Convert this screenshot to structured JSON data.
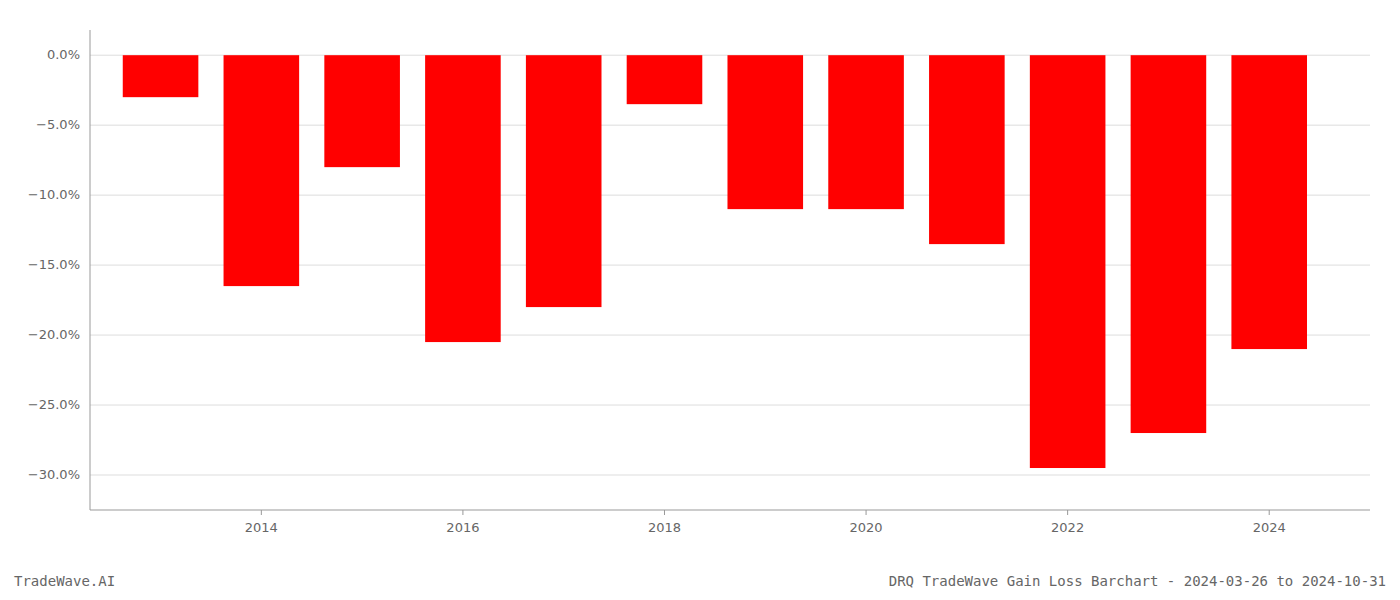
{
  "chart_data": {
    "type": "bar",
    "title": "DRQ TradeWave Gain Loss Barchart - 2024-03-26 to 2024-10-31",
    "annotation": "TradeWave.AI",
    "x": [
      2013,
      2014,
      2015,
      2016,
      2017,
      2018,
      2019,
      2020,
      2021,
      2022,
      2023,
      2024
    ],
    "values": [
      -3.0,
      -16.5,
      -8.0,
      -20.5,
      -18.0,
      -3.5,
      -11.0,
      -11.0,
      -13.5,
      -29.5,
      -27.0,
      -21.0
    ],
    "color": "#ff0000",
    "xlim": [
      2012.3,
      2025.0
    ],
    "xticks": [
      2014,
      2016,
      2018,
      2020,
      2022,
      2024
    ],
    "ylim": [
      -32.5,
      1.8
    ],
    "yticks": [
      {
        "value": 0.0,
        "label": "0.0%"
      },
      {
        "value": -5.0,
        "label": "−5.0%"
      },
      {
        "value": -10.0,
        "label": "−10.0%"
      },
      {
        "value": -15.0,
        "label": "−15.0%"
      },
      {
        "value": -20.0,
        "label": "−20.0%"
      },
      {
        "value": -25.0,
        "label": "−25.0%"
      },
      {
        "value": -30.0,
        "label": "−30.0%"
      }
    ],
    "grid": true
  }
}
